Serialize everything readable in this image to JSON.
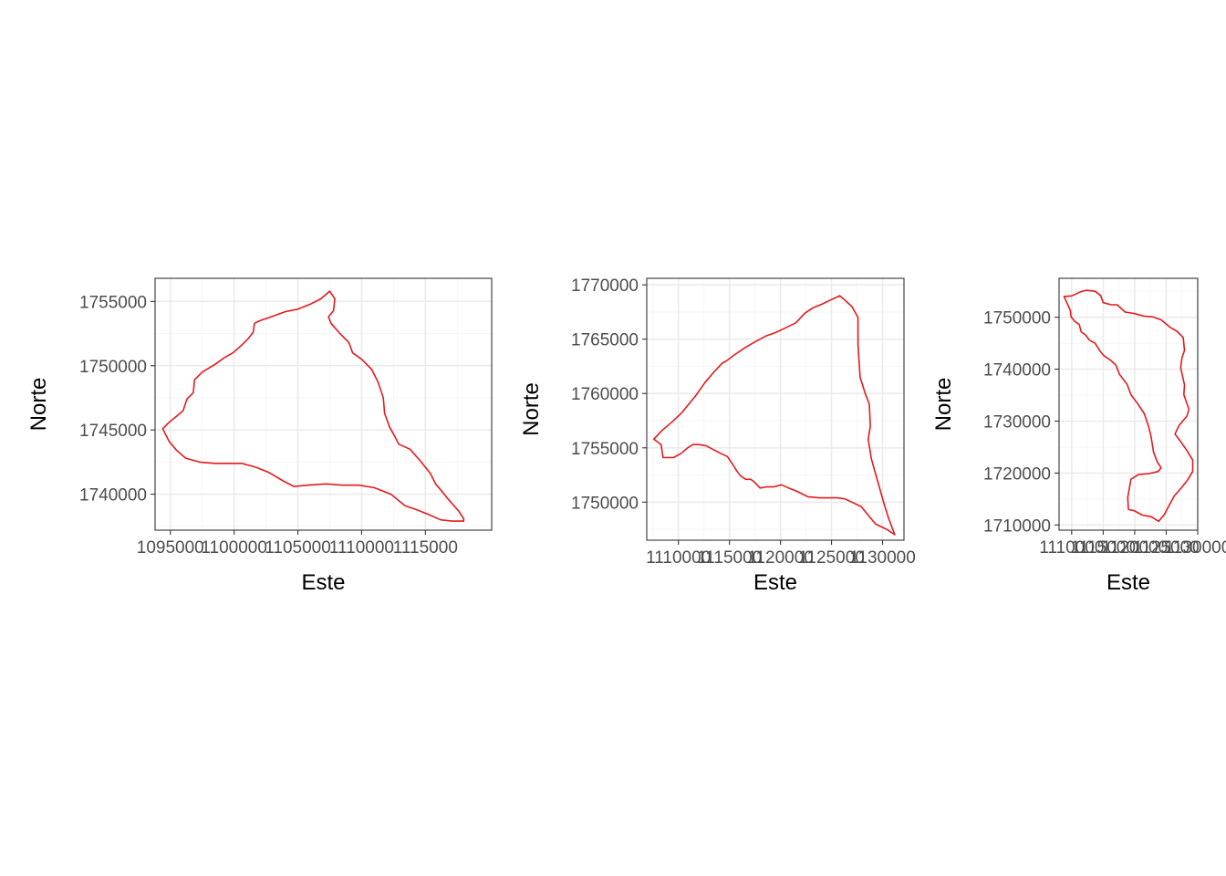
{
  "chart_data": [
    {
      "type": "line",
      "geometry": "polygon",
      "xlabel": "Este",
      "ylabel": "Norte",
      "xlim": [
        1093800,
        1120200
      ],
      "ylim": [
        1737200,
        1756800
      ],
      "xticks": [
        1095000,
        1100000,
        1105000,
        1110000,
        1115000
      ],
      "xtick_labels": [
        "1095000",
        "1100000",
        "1105000",
        "1110000",
        "1115000"
      ],
      "yticks": [
        1740000,
        1745000,
        1750000,
        1755000
      ],
      "ytick_labels": [
        "1740000",
        "1745000",
        "1750000",
        "1755000"
      ],
      "grid": true,
      "color": "#e41a1c",
      "x": [
        1107500,
        1107900,
        1107800,
        1107400,
        1107600,
        1108300,
        1109000,
        1109300,
        1110000,
        1110800,
        1111300,
        1111700,
        1111800,
        1112200,
        1112600,
        1112900,
        1113800,
        1114600,
        1115400,
        1115800,
        1116400,
        1116800,
        1117600,
        1118000,
        1118000,
        1117100,
        1116200,
        1115300,
        1114300,
        1113400,
        1112300,
        1111000,
        1109800,
        1108500,
        1107200,
        1105800,
        1104700,
        1103900,
        1102700,
        1101700,
        1100600,
        1099500,
        1098500,
        1097300,
        1096200,
        1095500,
        1094900,
        1094400,
        1094900,
        1095400,
        1096000,
        1096300,
        1096800,
        1096900,
        1097500,
        1098500,
        1099200,
        1099900,
        1100600,
        1101100,
        1101500,
        1101600,
        1102000,
        1102900,
        1104000,
        1105000,
        1106000,
        1106800,
        1107500
      ],
      "y": [
        1755800,
        1755200,
        1754300,
        1753800,
        1753300,
        1752500,
        1751800,
        1751000,
        1750500,
        1749700,
        1748700,
        1747500,
        1746300,
        1745200,
        1744500,
        1743900,
        1743500,
        1742600,
        1741600,
        1740800,
        1740100,
        1739600,
        1738700,
        1738100,
        1737900,
        1737900,
        1738000,
        1738400,
        1738800,
        1739100,
        1740000,
        1740500,
        1740700,
        1740700,
        1740800,
        1740700,
        1740600,
        1741000,
        1741700,
        1742100,
        1742400,
        1742400,
        1742400,
        1742500,
        1742800,
        1743400,
        1744100,
        1745100,
        1745600,
        1746000,
        1746500,
        1747400,
        1747900,
        1748900,
        1749500,
        1750100,
        1750600,
        1751000,
        1751600,
        1752100,
        1752600,
        1753300,
        1753500,
        1753800,
        1754200,
        1754400,
        1754800,
        1755200,
        1755800
      ]
    },
    {
      "type": "line",
      "geometry": "polygon",
      "xlabel": "Este",
      "ylabel": "Norte",
      "xlim": [
        1106900,
        1132100
      ],
      "ylim": [
        1746500,
        1770600
      ],
      "xticks": [
        1110000,
        1115000,
        1120000,
        1125000,
        1130000
      ],
      "xtick_labels": [
        "1110000",
        "1115000",
        "1120000",
        "1125000",
        "1130000"
      ],
      "yticks": [
        1750000,
        1755000,
        1760000,
        1765000,
        1770000
      ],
      "ytick_labels": [
        "1750000",
        "1755000",
        "1760000",
        "1765000",
        "1770000"
      ],
      "grid": true,
      "color": "#e41a1c",
      "x": [
        1107600,
        1108400,
        1109400,
        1110300,
        1111000,
        1111700,
        1112600,
        1113500,
        1114300,
        1114700,
        1115400,
        1116500,
        1117400,
        1118600,
        1119500,
        1120400,
        1121500,
        1122400,
        1123200,
        1124000,
        1124900,
        1125800,
        1126300,
        1127000,
        1127600,
        1127600,
        1127800,
        1128300,
        1128700,
        1128800,
        1128600,
        1128900,
        1129500,
        1130100,
        1130600,
        1131200,
        1130400,
        1129300,
        1128600,
        1127900,
        1127000,
        1126300,
        1125600,
        1124800,
        1123800,
        1122700,
        1121600,
        1120800,
        1120100,
        1119300,
        1118600,
        1118000,
        1117500,
        1117100,
        1116600,
        1116100,
        1115700,
        1115300,
        1114800,
        1114100,
        1113500,
        1112700,
        1112000,
        1111400,
        1110900,
        1110300,
        1109500,
        1108500,
        1108300,
        1107600
      ],
      "y": [
        1755800,
        1756600,
        1757400,
        1758200,
        1759000,
        1759800,
        1761000,
        1762000,
        1762800,
        1763000,
        1763500,
        1764200,
        1764700,
        1765300,
        1765600,
        1766000,
        1766500,
        1767400,
        1767900,
        1768200,
        1768600,
        1769000,
        1768600,
        1768000,
        1767000,
        1764500,
        1761500,
        1760000,
        1759000,
        1757000,
        1755800,
        1754000,
        1752000,
        1750000,
        1748500,
        1747000,
        1747500,
        1748000,
        1748800,
        1749600,
        1750000,
        1750300,
        1750400,
        1750400,
        1750400,
        1750500,
        1751000,
        1751300,
        1751600,
        1751400,
        1751400,
        1751300,
        1751800,
        1752100,
        1752100,
        1752400,
        1752900,
        1753500,
        1754200,
        1754500,
        1754800,
        1755200,
        1755300,
        1755300,
        1755000,
        1754500,
        1754100,
        1754100,
        1755300,
        1755800
      ]
    },
    {
      "type": "line",
      "geometry": "polygon",
      "xlabel": "Este",
      "ylabel": "Norte",
      "xlim": [
        1108000,
        1130000
      ],
      "ylim": [
        1709000,
        1757500
      ],
      "xticks": [
        1110000,
        1115000,
        1120000,
        1125000,
        1130000
      ],
      "xtick_labels": [
        "1110000",
        "1115000",
        "1120000",
        "1125000",
        "1130000"
      ],
      "yticks": [
        1710000,
        1720000,
        1730000,
        1740000,
        1750000
      ],
      "ytick_labels": [
        "1710000",
        "1720000",
        "1730000",
        "1740000",
        "1750000"
      ],
      "grid": true,
      "color": "#e41a1c",
      "x": [
        1108800,
        1110000,
        1111400,
        1112300,
        1113700,
        1114600,
        1115000,
        1116300,
        1117200,
        1118500,
        1120000,
        1121500,
        1122800,
        1124200,
        1125700,
        1126700,
        1127700,
        1127900,
        1127500,
        1127300,
        1127900,
        1127800,
        1128600,
        1128300,
        1127000,
        1126400,
        1127200,
        1128300,
        1129200,
        1129200,
        1128300,
        1127300,
        1126300,
        1125400,
        1124700,
        1123800,
        1122600,
        1121200,
        1120000,
        1119000,
        1118900,
        1119400,
        1120600,
        1122300,
        1123700,
        1124200,
        1123600,
        1123000,
        1122600,
        1122200,
        1121500,
        1120500,
        1119400,
        1118800,
        1117600,
        1117000,
        1116200,
        1115100,
        1114500,
        1113700,
        1112800,
        1112200,
        1111500,
        1111200,
        1110500,
        1109900,
        1109800,
        1108800
      ],
      "y": [
        1754000,
        1754100,
        1754900,
        1755200,
        1755000,
        1754200,
        1752800,
        1752400,
        1752400,
        1751000,
        1750700,
        1750200,
        1750100,
        1749500,
        1748000,
        1747300,
        1746100,
        1743600,
        1742200,
        1740300,
        1737000,
        1735100,
        1732300,
        1731000,
        1729100,
        1727500,
        1726200,
        1724300,
        1722500,
        1720300,
        1718500,
        1717000,
        1715600,
        1713600,
        1712000,
        1710700,
        1711600,
        1711900,
        1712700,
        1713000,
        1715300,
        1718800,
        1719700,
        1719900,
        1720300,
        1721000,
        1722100,
        1724000,
        1727000,
        1729000,
        1731500,
        1733300,
        1735100,
        1737100,
        1739000,
        1740800,
        1741700,
        1742600,
        1743500,
        1745000,
        1745600,
        1746600,
        1747200,
        1748600,
        1749200,
        1750100,
        1751300,
        1754000
      ]
    }
  ]
}
